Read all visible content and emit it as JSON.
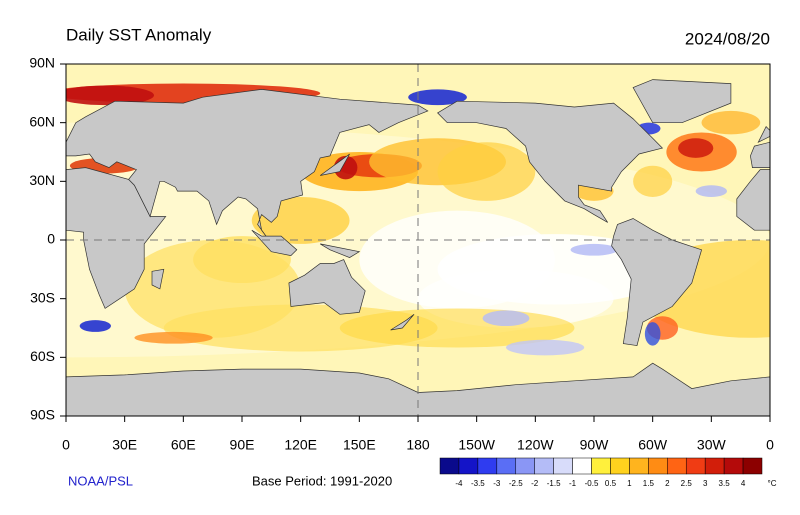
{
  "header": {
    "title": "Daily SST Anomaly",
    "date": "2024/08/20"
  },
  "lat_labels": [
    "90N",
    "60N",
    "30N",
    "0",
    "30S",
    "60S",
    "90S"
  ],
  "lon_labels": [
    "0",
    "30E",
    "60E",
    "90E",
    "120E",
    "150E",
    "180",
    "150W",
    "120W",
    "90W",
    "60W",
    "30W",
    "0"
  ],
  "footer": {
    "source": "NOAA/PSL",
    "base_period": "Base Period: 1991-2020"
  },
  "colorbar": {
    "colors": [
      "#0a0a8c",
      "#1414c8",
      "#2f3cf0",
      "#5a6ef5",
      "#8a96f5",
      "#b4bcf7",
      "#d8dcfa",
      "#ffffff",
      "#fff03c",
      "#ffd21e",
      "#ffb41e",
      "#ff8c14",
      "#ff6414",
      "#f03c14",
      "#d21e0a",
      "#b40a0a",
      "#8c0000"
    ],
    "labels": [
      "-4",
      "-3.5",
      "-3",
      "-2.5",
      "-2",
      "-1.5",
      "-1",
      "-0.5",
      "0.5",
      "1",
      "1.5",
      "2",
      "2.5",
      "3",
      "3.5",
      "4"
    ],
    "unit": "°C"
  }
}
